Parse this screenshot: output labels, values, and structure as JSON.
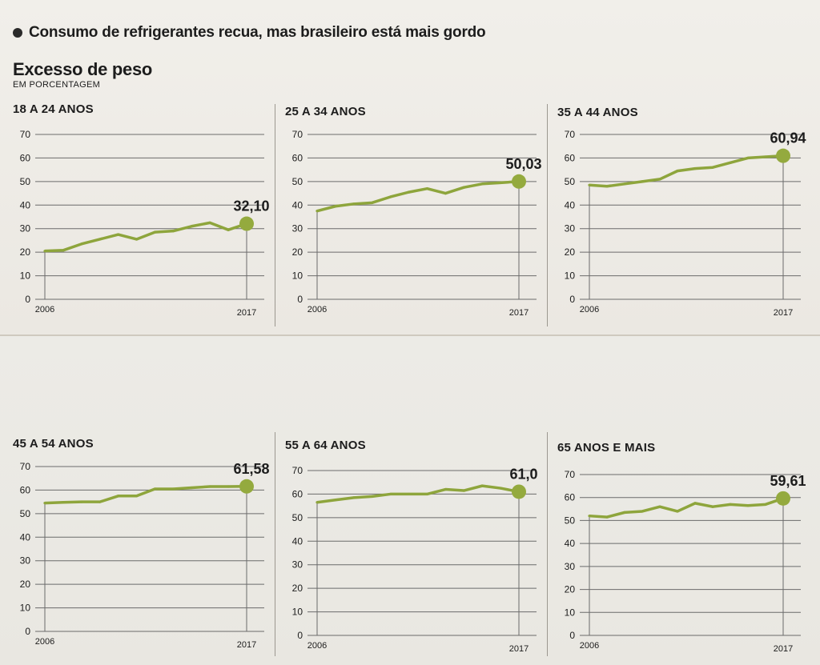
{
  "header": {
    "headline": "Consumo de refrigerantes recua, mas brasileiro está mais gordo",
    "title": "Excesso de peso",
    "subtitle": "EM PORCENTAGEM"
  },
  "colors": {
    "line": "#8ea53c",
    "dot": "#94aa3e",
    "grid": "#6b6b6b",
    "text": "#1c1c1c"
  },
  "chart_data": [
    {
      "type": "line",
      "title": "18 A 24 ANOS",
      "x": [
        2006,
        2007,
        2008,
        2009,
        2010,
        2011,
        2012,
        2013,
        2014,
        2015,
        2016,
        2017
      ],
      "values": [
        20.5,
        20.8,
        23.5,
        25.5,
        27.5,
        25.5,
        28.5,
        29.0,
        31.0,
        32.5,
        29.5,
        32.1
      ],
      "final_label": "32,10",
      "xlabels": [
        "2006",
        "2017"
      ],
      "ylim": [
        0,
        70
      ],
      "yticks": [
        0,
        10,
        20,
        30,
        40,
        50,
        60,
        70
      ]
    },
    {
      "type": "line",
      "title": "25 A 34 ANOS",
      "x": [
        2006,
        2007,
        2008,
        2009,
        2010,
        2011,
        2012,
        2013,
        2014,
        2015,
        2016,
        2017
      ],
      "values": [
        37.5,
        39.5,
        40.5,
        41.0,
        43.5,
        45.5,
        47.0,
        45.0,
        47.5,
        49.0,
        49.5,
        50.03
      ],
      "final_label": "50,03",
      "xlabels": [
        "2006",
        "2017"
      ],
      "ylim": [
        0,
        70
      ],
      "yticks": [
        0,
        10,
        20,
        30,
        40,
        50,
        60,
        70
      ]
    },
    {
      "type": "line",
      "title": "35 A 44 ANOS",
      "x": [
        2006,
        2007,
        2008,
        2009,
        2010,
        2011,
        2012,
        2013,
        2014,
        2015,
        2016,
        2017
      ],
      "values": [
        48.5,
        48.0,
        49.0,
        50.0,
        51.0,
        54.5,
        55.5,
        56.0,
        58.0,
        60.0,
        60.5,
        60.94
      ],
      "final_label": "60,94",
      "xlabels": [
        "2006",
        "2017"
      ],
      "ylim": [
        0,
        70
      ],
      "yticks": [
        0,
        10,
        20,
        30,
        40,
        50,
        60,
        70
      ]
    },
    {
      "type": "line",
      "title": "45 A 54 ANOS",
      "x": [
        2006,
        2007,
        2008,
        2009,
        2010,
        2011,
        2012,
        2013,
        2014,
        2015,
        2016,
        2017
      ],
      "values": [
        54.5,
        54.8,
        55.0,
        55.0,
        57.5,
        57.5,
        60.5,
        60.5,
        61.0,
        61.5,
        61.5,
        61.58
      ],
      "final_label": "61,58",
      "xlabels": [
        "2006",
        "2017"
      ],
      "ylim": [
        0,
        70
      ],
      "yticks": [
        0,
        10,
        20,
        30,
        40,
        50,
        60,
        70
      ]
    },
    {
      "type": "line",
      "title": "55 A 64 ANOS",
      "x": [
        2006,
        2007,
        2008,
        2009,
        2010,
        2011,
        2012,
        2013,
        2014,
        2015,
        2016,
        2017
      ],
      "values": [
        56.5,
        57.5,
        58.5,
        59.0,
        60.0,
        60.0,
        60.0,
        62.0,
        61.5,
        63.5,
        62.5,
        61.0
      ],
      "final_label": "61,0",
      "xlabels": [
        "2006",
        "2017"
      ],
      "ylim": [
        0,
        70
      ],
      "yticks": [
        0,
        10,
        20,
        30,
        40,
        50,
        60,
        70
      ]
    },
    {
      "type": "line",
      "title": "65 ANOS E MAIS",
      "x": [
        2006,
        2007,
        2008,
        2009,
        2010,
        2011,
        2012,
        2013,
        2014,
        2015,
        2016,
        2017
      ],
      "values": [
        52.0,
        51.5,
        53.5,
        54.0,
        56.0,
        54.0,
        57.5,
        56.0,
        57.0,
        56.5,
        57.0,
        59.61
      ],
      "final_label": "59,61",
      "xlabels": [
        "2006",
        "2017"
      ],
      "ylim": [
        0,
        70
      ],
      "yticks": [
        0,
        10,
        20,
        30,
        40,
        50,
        60,
        70
      ]
    }
  ]
}
